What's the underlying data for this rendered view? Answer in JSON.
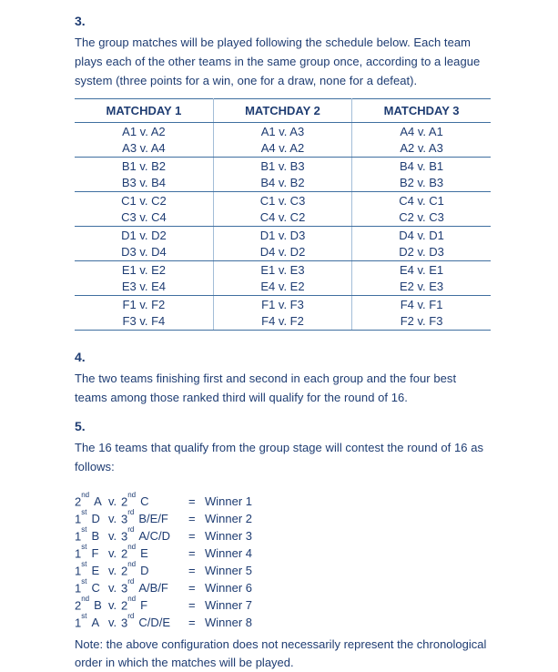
{
  "colors": {
    "text_navy": "#1e3c72",
    "table_rule_blue": "#3f6fa0",
    "table_divider_light_blue": "#a3bdd8"
  },
  "sections": {
    "s3": {
      "number": "3.",
      "text": "The group matches will be played following the schedule below. Each team\nplays each of the other teams in the same group once, according to a league\nsystem (three points for a win, one for a draw, none for a defeat)."
    },
    "s4": {
      "number": "4.",
      "text": "The two teams finishing first and second in each group and the four best\nteams among those ranked third will qualify for the round of 16."
    },
    "s5": {
      "number": "5.",
      "text": "The 16 teams that qualify from the group stage will contest the round of 16 as\nfollows:"
    }
  },
  "schedule": {
    "headers": [
      "MATCHDAY 1",
      "MATCHDAY 2",
      "MATCHDAY 3"
    ],
    "groups": [
      {
        "md1": [
          "A1 v. A2",
          "A3 v. A4"
        ],
        "md2": [
          "A1 v. A3",
          "A4 v. A2"
        ],
        "md3": [
          "A4 v. A1",
          "A2 v. A3"
        ]
      },
      {
        "md1": [
          "B1 v. B2",
          "B3 v. B4"
        ],
        "md2": [
          "B1 v. B3",
          "B4 v. B2"
        ],
        "md3": [
          "B4 v. B1",
          "B2 v. B3"
        ]
      },
      {
        "md1": [
          "C1 v. C2",
          "C3 v. C4"
        ],
        "md2": [
          "C1 v. C3",
          "C4 v. C2"
        ],
        "md3": [
          "C4 v. C1",
          "C2 v. C3"
        ]
      },
      {
        "md1": [
          "D1 v. D2",
          "D3 v. D4"
        ],
        "md2": [
          "D1 v. D3",
          "D4 v. D2"
        ],
        "md3": [
          "D4 v. D1",
          "D2 v. D3"
        ]
      },
      {
        "md1": [
          "E1 v. E2",
          "E3 v. E4"
        ],
        "md2": [
          "E1 v. E3",
          "E4 v. E2"
        ],
        "md3": [
          "E4 v. E1",
          "E2 v. E3"
        ]
      },
      {
        "md1": [
          "F1 v. F2",
          "F3 v. F4"
        ],
        "md2": [
          "F1 v. F3",
          "F4 v. F2"
        ],
        "md3": [
          "F4 v. F1",
          "F2 v. F3"
        ]
      }
    ]
  },
  "round_of_16": {
    "rows": [
      {
        "l_rank": "2",
        "l_sup": "nd",
        "l_team": "A",
        "v": "v.",
        "r_rank": "2",
        "r_sup": "nd",
        "r_team": "C",
        "eq": "=",
        "winner": "Winner 1"
      },
      {
        "l_rank": "1",
        "l_sup": "st",
        "l_team": "D",
        "v": "v.",
        "r_rank": "3",
        "r_sup": "rd",
        "r_team": "B/E/F",
        "eq": "=",
        "winner": "Winner 2"
      },
      {
        "l_rank": "1",
        "l_sup": "st",
        "l_team": "B",
        "v": "v.",
        "r_rank": "3",
        "r_sup": "rd",
        "r_team": "A/C/D",
        "eq": "=",
        "winner": "Winner 3"
      },
      {
        "l_rank": "1",
        "l_sup": "st",
        "l_team": "F",
        "v": "v.",
        "r_rank": "2",
        "r_sup": "nd",
        "r_team": "E",
        "eq": "=",
        "winner": "Winner 4"
      },
      {
        "l_rank": "1",
        "l_sup": "st",
        "l_team": "E",
        "v": "v.",
        "r_rank": "2",
        "r_sup": "nd",
        "r_team": "D",
        "eq": "=",
        "winner": "Winner 5"
      },
      {
        "l_rank": "1",
        "l_sup": "st",
        "l_team": "C",
        "v": "v.",
        "r_rank": "3",
        "r_sup": "rd",
        "r_team": "A/B/F",
        "eq": "=",
        "winner": "Winner 6"
      },
      {
        "l_rank": "2",
        "l_sup": "nd",
        "l_team": "B",
        "v": "v.",
        "r_rank": "2",
        "r_sup": "nd",
        "r_team": "F",
        "eq": "=",
        "winner": "Winner 7"
      },
      {
        "l_rank": "1",
        "l_sup": "st",
        "l_team": "A",
        "v": "v.",
        "r_rank": "3",
        "r_sup": "rd",
        "r_team": "C/D/E",
        "eq": "=",
        "winner": "Winner 8"
      }
    ]
  },
  "note": "Note: the above configuration does not necessarily represent the chronological\norder in which the matches will be played."
}
